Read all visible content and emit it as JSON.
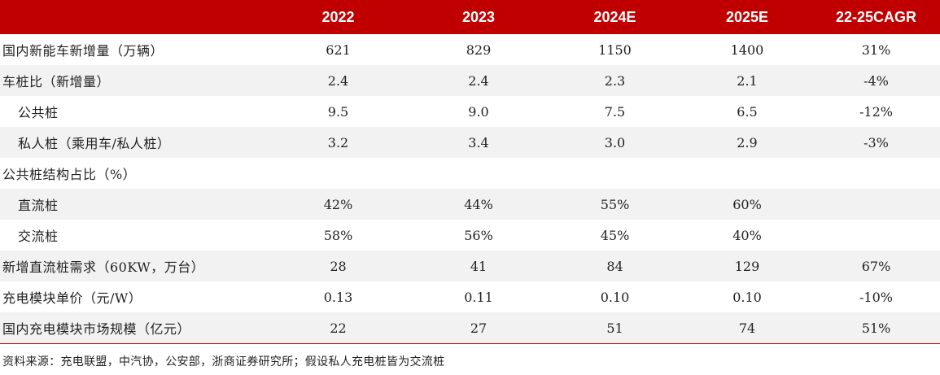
{
  "table": {
    "columns": [
      "",
      "2022",
      "2023",
      "2024E",
      "2025E",
      "22-25CAGR"
    ],
    "rows": [
      {
        "label": "国内新能车新增量（万辆）",
        "values": [
          "621",
          "829",
          "1150",
          "1400",
          "31%"
        ]
      },
      {
        "label": "车桩比（新增量）",
        "values": [
          "2.4",
          "2.4",
          "2.3",
          "2.1",
          "-4%"
        ]
      },
      {
        "label": "公共桩",
        "values": [
          "9.5",
          "9.0",
          "7.5",
          "6.5",
          "-12%"
        ]
      },
      {
        "label": "私人桩（乘用车/私人桩）",
        "values": [
          "3.2",
          "3.4",
          "3.0",
          "2.9",
          "-3%"
        ]
      },
      {
        "label": "公共桩结构占比（%）",
        "values": [
          "",
          "",
          "",
          "",
          ""
        ]
      },
      {
        "label": "直流桩",
        "values": [
          "42%",
          "44%",
          "55%",
          "60%",
          ""
        ]
      },
      {
        "label": "交流桩",
        "values": [
          "58%",
          "56%",
          "45%",
          "40%",
          ""
        ]
      },
      {
        "label": "新增直流桩需求（60KW，万台）",
        "values": [
          "28",
          "41",
          "84",
          "129",
          "67%"
        ]
      },
      {
        "label": "充电模块单价（元/W）",
        "values": [
          "0.13",
          "0.11",
          "0.10",
          "0.10",
          "-10%"
        ]
      },
      {
        "label": "国内充电模块市场规模（亿元）",
        "values": [
          "22",
          "27",
          "51",
          "74",
          "51%"
        ]
      }
    ]
  },
  "source": "资料来源：充电联盟，中汽协，公安部，浙商证券研究所；假设私人充电桩皆为交流桩"
}
